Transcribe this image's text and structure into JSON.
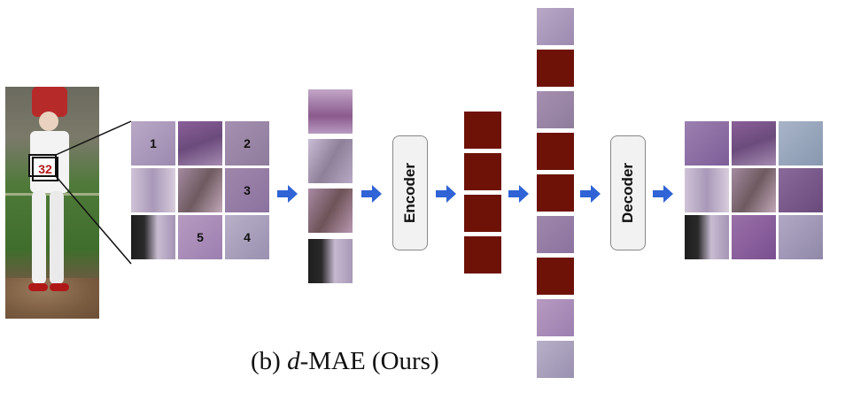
{
  "patch_numbers": {
    "p1": "1",
    "p2": "2",
    "p3": "3",
    "p4": "4",
    "p5": "5"
  },
  "jersey_number": "32",
  "encoder_label": "Encoder",
  "decoder_label": "Decoder",
  "caption": {
    "prefix": "(b) ",
    "italic": "d",
    "suffix": "-MAE (Ours)"
  },
  "colors": {
    "masked_token": "#6e1208",
    "arrow": "#2f63d6",
    "patch_purple": "#8a6a9a",
    "box_fill": "#f2f2f2"
  },
  "icons": [
    "right-arrow-icon"
  ]
}
